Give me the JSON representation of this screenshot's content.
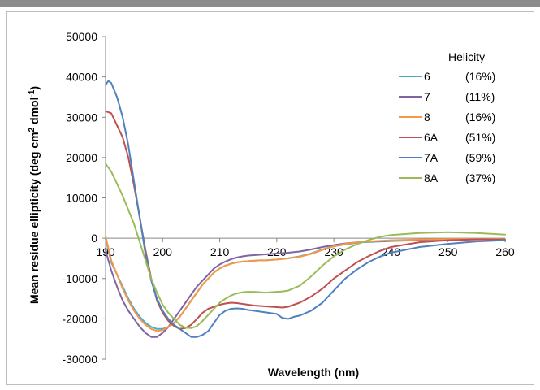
{
  "chart_data": {
    "type": "line",
    "title": "",
    "xlabel": "Wavelength (nm)",
    "ylabel_main": "Mean residue ellipticity (deg cm",
    "ylabel_sup1": "2",
    "ylabel_mid": " dmol",
    "ylabel_sup2": "-1",
    "ylabel_end": ")",
    "xlim": [
      190,
      260
    ],
    "ylim": [
      -30000,
      50000
    ],
    "xticks": [
      "190",
      "200",
      "210",
      "220",
      "230",
      "240",
      "250",
      "260"
    ],
    "yticks": [
      "50000",
      "40000",
      "30000",
      "20000",
      "10000",
      "0",
      "-10000",
      "-20000",
      "-30000"
    ],
    "legend_title": "Helicity",
    "legend_position": "right",
    "grid": false,
    "series": [
      {
        "name": "6",
        "helicity": "(16%)",
        "color": "#4bacc6",
        "x": [
          190,
          191,
          192,
          193,
          194,
          195,
          196,
          197,
          198,
          199,
          200,
          201,
          202,
          203,
          204,
          205,
          206,
          207,
          208,
          209,
          210,
          211,
          212,
          213,
          214,
          215,
          216,
          217,
          218,
          219,
          220,
          222,
          224,
          226,
          228,
          230,
          232,
          235,
          240,
          245,
          250,
          255,
          260
        ],
        "y": [
          0,
          -6000,
          -9000,
          -12000,
          -15000,
          -17500,
          -19500,
          -21000,
          -22000,
          -22500,
          -22500,
          -22000,
          -21000,
          -19500,
          -17500,
          -15500,
          -13500,
          -11500,
          -10000,
          -8500,
          -7500,
          -6800,
          -6300,
          -6000,
          -5800,
          -5700,
          -5600,
          -5500,
          -5500,
          -5400,
          -5300,
          -5000,
          -4500,
          -3800,
          -2800,
          -2000,
          -1500,
          -1000,
          -700,
          -500,
          -300,
          -200,
          -400
        ]
      },
      {
        "name": "7",
        "helicity": "(11%)",
        "color": "#8064a2",
        "x": [
          190,
          191,
          192,
          193,
          194,
          195,
          196,
          197,
          198,
          199,
          200,
          201,
          202,
          203,
          204,
          205,
          206,
          207,
          208,
          209,
          210,
          211,
          212,
          213,
          214,
          215,
          216,
          217,
          218,
          219,
          220,
          222,
          224,
          226,
          228,
          230,
          232,
          235,
          240,
          245,
          250,
          255,
          260
        ],
        "y": [
          -3000,
          -8000,
          -12000,
          -15500,
          -18000,
          -20000,
          -22000,
          -23500,
          -24500,
          -24500,
          -23500,
          -22000,
          -20000,
          -18000,
          -16000,
          -14000,
          -12000,
          -10500,
          -9000,
          -7500,
          -6500,
          -5800,
          -5200,
          -4800,
          -4500,
          -4300,
          -4200,
          -4100,
          -4000,
          -3900,
          -3800,
          -3600,
          -3300,
          -2800,
          -2200,
          -1700,
          -1300,
          -900,
          -600,
          -400,
          -300,
          -200,
          -300
        ]
      },
      {
        "name": "8",
        "helicity": "(16%)",
        "color": "#f79646",
        "x": [
          190,
          191,
          192,
          193,
          194,
          195,
          196,
          197,
          198,
          199,
          200,
          201,
          202,
          203,
          204,
          205,
          206,
          207,
          208,
          209,
          210,
          211,
          212,
          213,
          214,
          215,
          216,
          217,
          218,
          219,
          220,
          222,
          224,
          226,
          228,
          230,
          232,
          235,
          240,
          245,
          250,
          255,
          260
        ],
        "y": [
          500,
          -5500,
          -9000,
          -12500,
          -15500,
          -18000,
          -20000,
          -21500,
          -22500,
          -23000,
          -22800,
          -22000,
          -21000,
          -19500,
          -17500,
          -15500,
          -13500,
          -11500,
          -10000,
          -8500,
          -7500,
          -6800,
          -6300,
          -6000,
          -5800,
          -5700,
          -5600,
          -5500,
          -5500,
          -5400,
          -5300,
          -5000,
          -4600,
          -3900,
          -2900,
          -2000,
          -1400,
          -900,
          -500,
          -300,
          -200,
          -200,
          -300
        ]
      },
      {
        "name": "6A",
        "helicity": "(51%)",
        "color": "#c0504d",
        "x": [
          190,
          191,
          192,
          193,
          194,
          195,
          196,
          197,
          198,
          199,
          200,
          201,
          202,
          203,
          204,
          205,
          206,
          207,
          208,
          209,
          210,
          211,
          212,
          213,
          214,
          215,
          216,
          217,
          218,
          219,
          220,
          221,
          222,
          224,
          226,
          228,
          230,
          232,
          234,
          236,
          238,
          240,
          245,
          250,
          255,
          260
        ],
        "y": [
          31500,
          31000,
          28000,
          25000,
          20000,
          13000,
          5000,
          -3000,
          -10000,
          -15500,
          -18500,
          -20500,
          -21800,
          -22500,
          -22300,
          -21500,
          -20000,
          -18500,
          -17500,
          -17000,
          -16500,
          -16200,
          -16000,
          -16100,
          -16300,
          -16500,
          -16700,
          -16800,
          -16900,
          -17000,
          -17100,
          -17200,
          -17000,
          -16000,
          -14500,
          -12500,
          -10000,
          -8000,
          -6000,
          -4500,
          -3200,
          -2200,
          -1000,
          -500,
          -300,
          -400
        ]
      },
      {
        "name": "7A",
        "helicity": "(59%)",
        "color": "#4f81bd",
        "x": [
          190,
          190.5,
          191,
          192,
          193,
          194,
          195,
          196,
          197,
          198,
          199,
          200,
          201,
          202,
          203,
          204,
          205,
          206,
          207,
          208,
          209,
          210,
          211,
          212,
          213,
          214,
          215,
          216,
          217,
          218,
          219,
          220,
          221,
          222,
          223,
          224,
          226,
          228,
          230,
          232,
          234,
          236,
          238,
          240,
          245,
          250,
          255,
          260
        ],
        "y": [
          38000,
          39000,
          38500,
          35000,
          30000,
          23000,
          14000,
          5000,
          -4000,
          -10500,
          -15000,
          -18000,
          -20000,
          -21500,
          -22500,
          -23500,
          -24500,
          -24500,
          -24000,
          -23000,
          -21000,
          -19000,
          -18000,
          -17500,
          -17400,
          -17500,
          -17800,
          -18000,
          -18200,
          -18400,
          -18600,
          -18800,
          -19800,
          -20000,
          -19500,
          -19200,
          -18000,
          -16000,
          -13000,
          -10000,
          -7800,
          -6000,
          -4600,
          -3600,
          -2200,
          -1400,
          -800,
          -500
        ]
      },
      {
        "name": "8A",
        "helicity": "(37%)",
        "color": "#9bbb59",
        "x": [
          190,
          191,
          192,
          193,
          194,
          195,
          196,
          197,
          198,
          199,
          200,
          201,
          202,
          203,
          204,
          205,
          206,
          207,
          208,
          209,
          210,
          211,
          212,
          213,
          214,
          215,
          216,
          217,
          218,
          219,
          220,
          221,
          222,
          224,
          226,
          228,
          230,
          232,
          234,
          236,
          238,
          240,
          245,
          250,
          255,
          260
        ],
        "y": [
          18500,
          16500,
          13500,
          10500,
          7000,
          3500,
          -1000,
          -5500,
          -10000,
          -13500,
          -16500,
          -18500,
          -20000,
          -21500,
          -22200,
          -22300,
          -21800,
          -20500,
          -19000,
          -17500,
          -16000,
          -15000,
          -14200,
          -13700,
          -13400,
          -13300,
          -13300,
          -13400,
          -13500,
          -13400,
          -13300,
          -13200,
          -13000,
          -11800,
          -9500,
          -6800,
          -4500,
          -2800,
          -1500,
          -500,
          300,
          800,
          1300,
          1500,
          1300,
          900
        ]
      }
    ]
  }
}
